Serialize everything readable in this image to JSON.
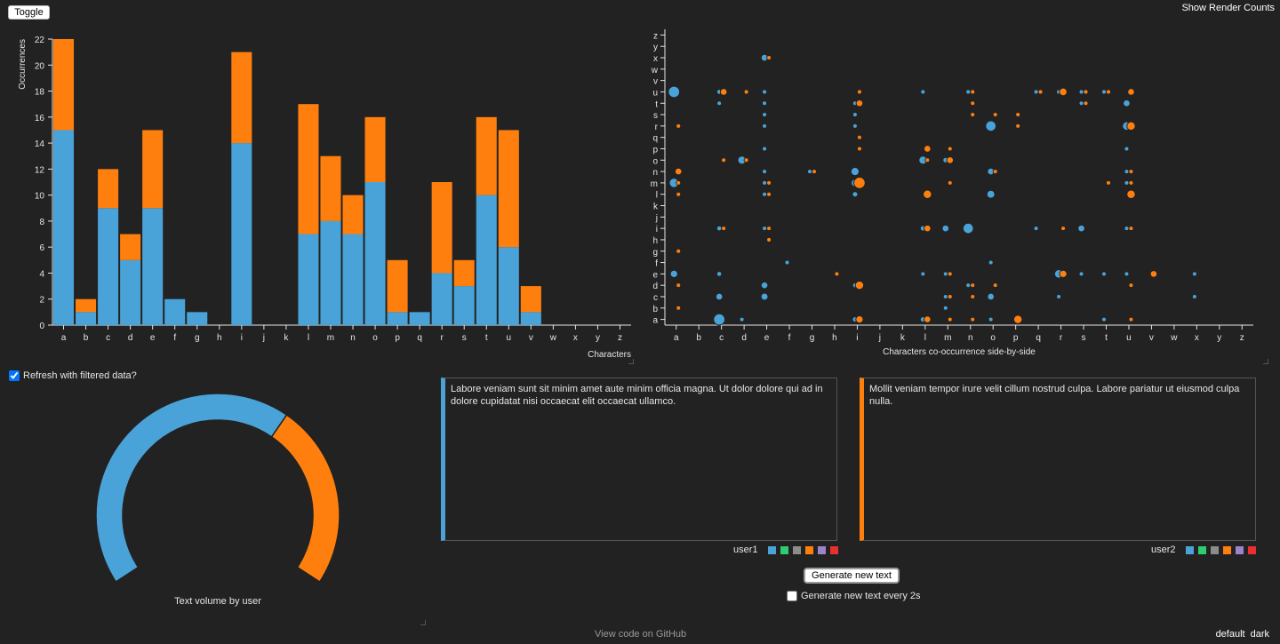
{
  "toolbar": {
    "toggle_label": "Toggle",
    "render_counts_label": "Show Render Counts"
  },
  "colors": {
    "user1": "#4aa3d8",
    "user2": "#ff7f0e",
    "background": "#222222"
  },
  "bar_chart": {
    "chart_data": {
      "type": "bar",
      "stacked": true,
      "categories": [
        "a",
        "b",
        "c",
        "d",
        "e",
        "f",
        "g",
        "h",
        "i",
        "j",
        "k",
        "l",
        "m",
        "n",
        "o",
        "p",
        "q",
        "r",
        "s",
        "t",
        "u",
        "v",
        "w",
        "x",
        "y",
        "z"
      ],
      "series": [
        {
          "values": [
            15,
            1,
            9,
            5,
            9,
            2,
            1,
            0,
            14,
            0,
            0,
            7,
            8,
            7,
            11,
            1,
            1,
            4,
            3,
            10,
            6,
            1,
            0,
            0,
            0,
            0
          ]
        },
        {
          "values": [
            7,
            1,
            3,
            2,
            6,
            0,
            0,
            0,
            7,
            0,
            0,
            10,
            5,
            3,
            5,
            4,
            0,
            7,
            2,
            6,
            9,
            2,
            0,
            0,
            0,
            0
          ]
        }
      ],
      "yticks": [
        0,
        2,
        4,
        6,
        8,
        10,
        12,
        14,
        16,
        18,
        20,
        22
      ],
      "ylim": [
        0,
        22
      ],
      "xlabel": "Characters",
      "ylabel": "Occurrences"
    }
  },
  "scatter_chart": {
    "chart_data": {
      "type": "scatter",
      "categories": [
        "a",
        "b",
        "c",
        "d",
        "e",
        "f",
        "g",
        "h",
        "i",
        "j",
        "k",
        "l",
        "m",
        "n",
        "o",
        "p",
        "q",
        "r",
        "s",
        "t",
        "u",
        "v",
        "w",
        "x",
        "y",
        "z"
      ],
      "xlabel": "Characters co-occurrence side-by-side",
      "series": [
        {
          "points": [
            [
              "a",
              "u",
              3
            ],
            [
              "a",
              "m",
              2
            ],
            [
              "a",
              "e",
              1.2
            ],
            [
              "c",
              "a",
              3
            ],
            [
              "c",
              "c",
              1
            ],
            [
              "c",
              "e",
              0.5
            ],
            [
              "c",
              "i",
              0.5
            ],
            [
              "c",
              "t",
              0.4
            ],
            [
              "c",
              "u",
              0.5
            ],
            [
              "d",
              "o",
              1.5
            ],
            [
              "d",
              "a",
              0.4
            ],
            [
              "e",
              "x",
              1
            ],
            [
              "e",
              "d",
              1
            ],
            [
              "e",
              "c",
              1.1
            ],
            [
              "e",
              "i",
              0.4
            ],
            [
              "e",
              "l",
              0.4
            ],
            [
              "e",
              "n",
              0.4
            ],
            [
              "e",
              "m",
              0.4
            ],
            [
              "e",
              "t",
              0.4
            ],
            [
              "e",
              "u",
              0.4
            ],
            [
              "e",
              "r",
              0.4
            ],
            [
              "e",
              "p",
              0.4
            ],
            [
              "e",
              "s",
              0.4
            ],
            [
              "f",
              "f",
              0.4
            ],
            [
              "g",
              "n",
              0.4
            ],
            [
              "i",
              "n",
              1.5
            ],
            [
              "i",
              "m",
              1.3
            ],
            [
              "i",
              "l",
              0.6
            ],
            [
              "i",
              "a",
              0.6
            ],
            [
              "i",
              "d",
              0.5
            ],
            [
              "i",
              "r",
              0.4
            ],
            [
              "i",
              "s",
              0.4
            ],
            [
              "i",
              "t",
              0.4
            ],
            [
              "l",
              "a",
              0.6
            ],
            [
              "l",
              "o",
              1.5
            ],
            [
              "l",
              "i",
              0.6
            ],
            [
              "l",
              "e",
              0.4
            ],
            [
              "l",
              "u",
              0.4
            ],
            [
              "m",
              "o",
              0.6
            ],
            [
              "m",
              "i",
              1
            ],
            [
              "m",
              "e",
              0.4
            ],
            [
              "m",
              "b",
              0.4
            ],
            [
              "m",
              "c",
              0.4
            ],
            [
              "n",
              "i",
              2.5
            ],
            [
              "n",
              "u",
              0.4
            ],
            [
              "n",
              "d",
              0.4
            ],
            [
              "o",
              "r",
              2.5
            ],
            [
              "o",
              "l",
              1.4
            ],
            [
              "o",
              "n",
              1
            ],
            [
              "o",
              "c",
              1
            ],
            [
              "o",
              "f",
              0.4
            ],
            [
              "o",
              "a",
              0.4
            ],
            [
              "q",
              "i",
              0.4
            ],
            [
              "q",
              "u",
              0.4
            ],
            [
              "r",
              "e",
              1.6
            ],
            [
              "r",
              "c",
              0.4
            ],
            [
              "r",
              "u",
              0.4
            ],
            [
              "s",
              "i",
              1
            ],
            [
              "s",
              "u",
              0.4
            ],
            [
              "s",
              "e",
              0.4
            ],
            [
              "s",
              "t",
              0.4
            ],
            [
              "t",
              "u",
              0.4
            ],
            [
              "t",
              "e",
              0.4
            ],
            [
              "t",
              "a",
              0.4
            ],
            [
              "u",
              "t",
              1
            ],
            [
              "u",
              "r",
              1.6
            ],
            [
              "u",
              "p",
              0.4
            ],
            [
              "u",
              "n",
              0.4
            ],
            [
              "u",
              "m",
              0.4
            ],
            [
              "u",
              "i",
              0.4
            ],
            [
              "u",
              "e",
              0.4
            ],
            [
              "x",
              "e",
              0.4
            ],
            [
              "x",
              "c",
              0.4
            ]
          ]
        },
        {
          "points": [
            [
              "a",
              "n",
              1
            ],
            [
              "a",
              "m",
              0.4
            ],
            [
              "a",
              "r",
              0.4
            ],
            [
              "a",
              "l",
              0.4
            ],
            [
              "a",
              "g",
              0.4
            ],
            [
              "a",
              "d",
              0.4
            ],
            [
              "a",
              "b",
              0.4
            ],
            [
              "c",
              "u",
              1
            ],
            [
              "c",
              "o",
              0.4
            ],
            [
              "c",
              "i",
              0.4
            ],
            [
              "d",
              "u",
              0.4
            ],
            [
              "d",
              "o",
              0.4
            ],
            [
              "e",
              "x",
              0.4
            ],
            [
              "e",
              "m",
              0.4
            ],
            [
              "e",
              "l",
              0.4
            ],
            [
              "e",
              "i",
              0.4
            ],
            [
              "e",
              "h",
              0.4
            ],
            [
              "g",
              "n",
              0.4
            ],
            [
              "h",
              "e",
              0.4
            ],
            [
              "i",
              "m",
              3
            ],
            [
              "i",
              "d",
              1.6
            ],
            [
              "i",
              "t",
              1
            ],
            [
              "i",
              "a",
              1.2
            ],
            [
              "i",
              "u",
              0.4
            ],
            [
              "i",
              "q",
              0.4
            ],
            [
              "i",
              "p",
              0.4
            ],
            [
              "l",
              "l",
              1.6
            ],
            [
              "l",
              "i",
              1
            ],
            [
              "l",
              "o",
              0.4
            ],
            [
              "l",
              "p",
              1
            ],
            [
              "l",
              "a",
              1
            ],
            [
              "m",
              "o",
              1
            ],
            [
              "m",
              "p",
              0.4
            ],
            [
              "m",
              "m",
              0.4
            ],
            [
              "m",
              "e",
              0.4
            ],
            [
              "m",
              "c",
              0.4
            ],
            [
              "m",
              "a",
              0.4
            ],
            [
              "n",
              "u",
              0.4
            ],
            [
              "n",
              "t",
              0.4
            ],
            [
              "n",
              "s",
              0.4
            ],
            [
              "n",
              "d",
              0.4
            ],
            [
              "n",
              "c",
              0.4
            ],
            [
              "n",
              "a",
              0.4
            ],
            [
              "o",
              "s",
              0.4
            ],
            [
              "o",
              "n",
              0.4
            ],
            [
              "o",
              "d",
              0.4
            ],
            [
              "p",
              "a",
              1.6
            ],
            [
              "p",
              "s",
              0.4
            ],
            [
              "p",
              "r",
              0.4
            ],
            [
              "q",
              "u",
              0.4
            ],
            [
              "r",
              "u",
              1.3
            ],
            [
              "r",
              "i",
              0.4
            ],
            [
              "r",
              "e",
              1.2
            ],
            [
              "s",
              "u",
              0.4
            ],
            [
              "s",
              "t",
              0.4
            ],
            [
              "t",
              "u",
              0.4
            ],
            [
              "t",
              "m",
              0.4
            ],
            [
              "u",
              "m",
              0.4
            ],
            [
              "u",
              "r",
              1.6
            ],
            [
              "u",
              "u",
              1
            ],
            [
              "u",
              "n",
              0.4
            ],
            [
              "u",
              "l",
              1.6
            ],
            [
              "u",
              "i",
              0.4
            ],
            [
              "u",
              "d",
              0.4
            ],
            [
              "u",
              "a",
              0.4
            ],
            [
              "v",
              "e",
              1
            ]
          ]
        }
      ]
    }
  },
  "refresh": {
    "label": "Refresh with filtered data?",
    "checked": true
  },
  "donut": {
    "chart_data": {
      "type": "pie",
      "title": "Text volume by user",
      "values": [
        0.64,
        0.36
      ]
    }
  },
  "user1": {
    "text": "Labore veniam sunt sit minim amet aute minim officia magna. Ut dolor dolore qui ad in dolore cupidatat nisi occaecat elit occaecat ullamco.",
    "label": "user1"
  },
  "user2": {
    "text": "Mollit veniam tempor irure velit cillum nostrud culpa. Labore pariatur ut eiusmod culpa nulla.",
    "label": "user2"
  },
  "swatches": [
    "#4aa3d8",
    "#2ecc71",
    "#8c8c8c",
    "#ff7f0e",
    "#9b84c9",
    "#e8302f"
  ],
  "generate": {
    "button_label": "Generate new text",
    "every_label": "Generate new text every 2s"
  },
  "footer": {
    "github_label": "View code on GitHub",
    "theme_default": "default",
    "theme_dark": "dark"
  }
}
